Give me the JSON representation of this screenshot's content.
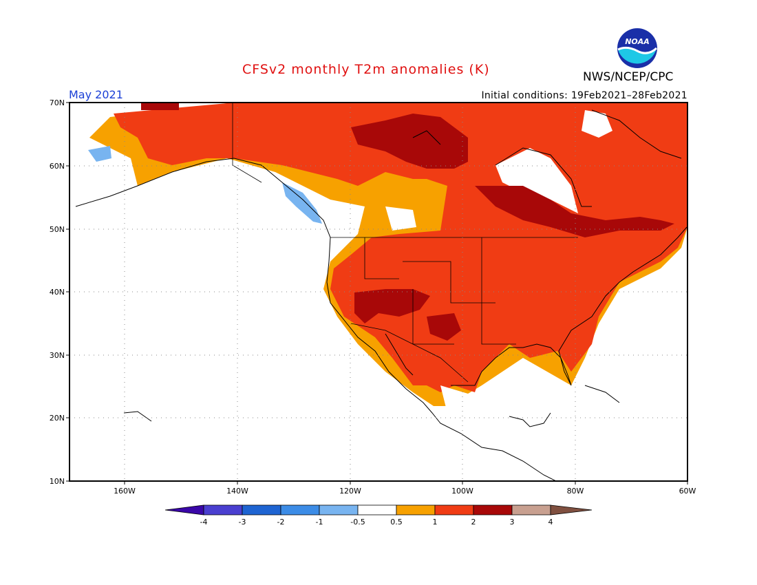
{
  "header": {
    "title": "CFSv2 monthly T2m anomalies (K)",
    "agency": "NWS/NCEP/CPC",
    "logo_text": "NOAA",
    "month": "May 2021",
    "init_conditions": "Initial conditions: 19Feb2021–28Feb2021"
  },
  "map": {
    "lon_range": [
      -170,
      -60
    ],
    "lat_range": [
      10,
      70
    ],
    "lat_labels": [
      "10N",
      "20N",
      "30N",
      "40N",
      "50N",
      "60N",
      "70N"
    ],
    "lon_labels": [
      "160W",
      "140W",
      "120W",
      "100W",
      "80W",
      "60W"
    ]
  },
  "legend": {
    "labels": [
      "-4",
      "-3",
      "-2",
      "-1",
      "-0.5",
      "0.5",
      "1",
      "2",
      "3",
      "4"
    ],
    "colors": [
      "#3a07a8",
      "#4a3fd0",
      "#1e64d2",
      "#3c8ce6",
      "#78b4f0",
      "#ffffff",
      "#f7a100",
      "#f03c14",
      "#a80808",
      "#c8a090",
      "#805040"
    ]
  },
  "colors": {
    "anom_05_1": "#f7a100",
    "anom_1_2": "#f03c14",
    "anom_2_3": "#a80808",
    "anom_neg": "#78b4f0"
  }
}
